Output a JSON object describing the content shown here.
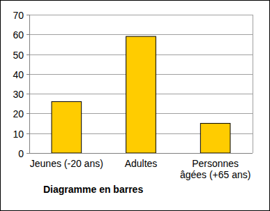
{
  "chart_data": {
    "type": "bar",
    "title": "Diagramme en barres",
    "categories": [
      "Jeunes (-20 ans)",
      "Adultes",
      "Personnes âgées (+65 ans)"
    ],
    "values": [
      26,
      59,
      15
    ],
    "color": "#ffcc00",
    "ylim": [
      0,
      70
    ],
    "yticks": [
      0,
      10,
      20,
      30,
      40,
      50,
      60,
      70
    ],
    "grid": true
  }
}
